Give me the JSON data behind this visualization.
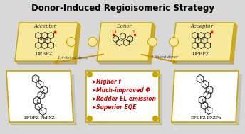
{
  "title": "Donor-Induced Regioisomeric Strategy",
  "title_fontsize": 8.5,
  "title_weight": "bold",
  "bg_color": "#d8d8d8",
  "panel_color": "#f5d86a",
  "panel_color_light": "#f8e89a",
  "panel_edge": "#c8a800",
  "white_panel_color": "#ffffff",
  "white_panel_edge": "#c8a800",
  "bullet_color": "#cc0000",
  "bullet_items": [
    "Higher f",
    "Much-improved ΦPL",
    "Redder EL emission",
    "Superior EQE"
  ],
  "label_left_top": "Acceptor",
  "label_left_bottom": "DPBPZ",
  "label_center_top": "Donor",
  "label_right_top": "Acceptor",
  "label_right_bottom": "DPBPZ",
  "label_mol_left": "DFDFZ-PhPXZ",
  "label_mol_right": "DFDFZ-PXZPh",
  "arrow_left": "1,4-linked donor",
  "arrow_right": "3-linked donor",
  "arrow_color": "#c89000",
  "shadow_color": "#b0b0b0"
}
